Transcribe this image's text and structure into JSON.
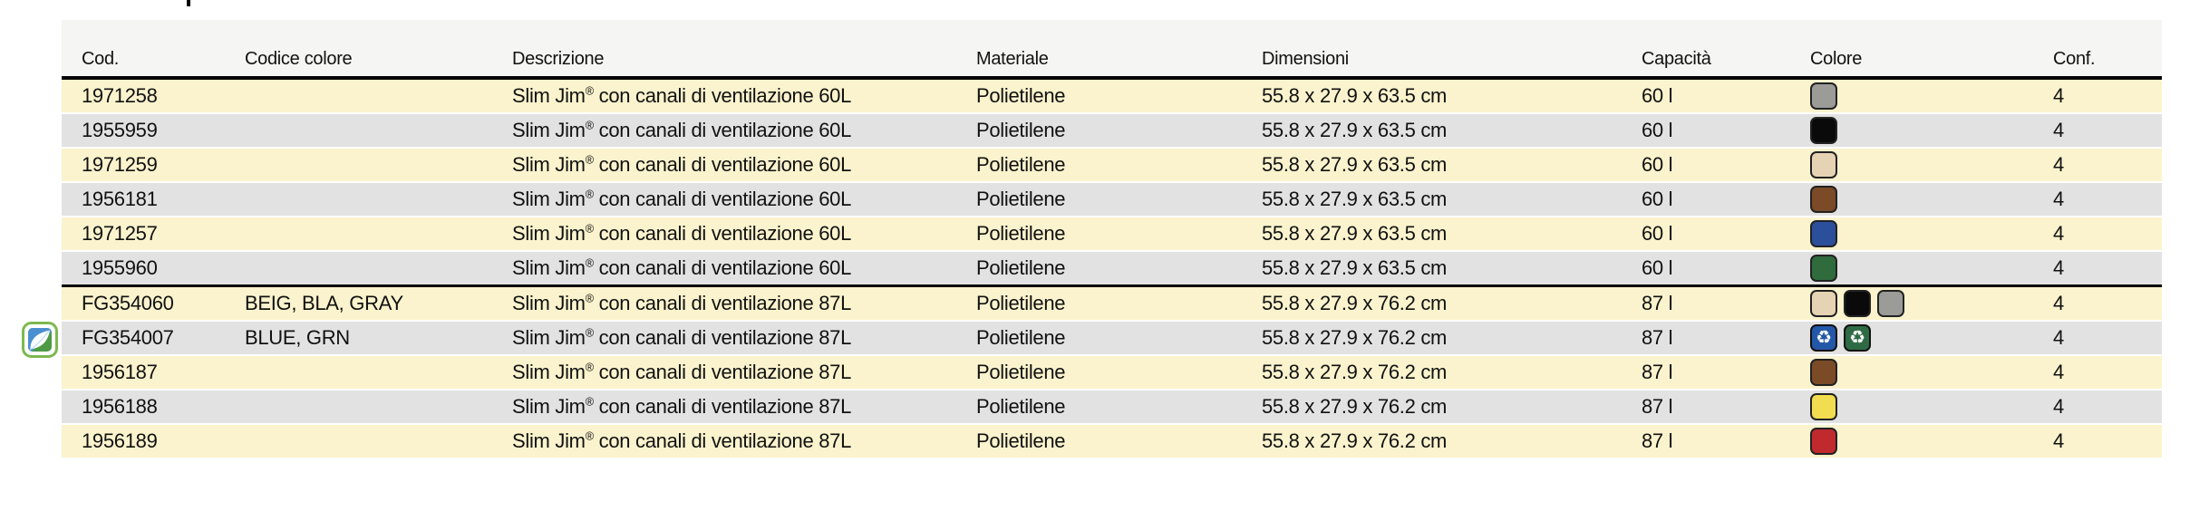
{
  "table": {
    "columns": [
      {
        "key": "cod",
        "label": "Cod."
      },
      {
        "key": "codice_colore",
        "label": "Codice colore"
      },
      {
        "key": "descrizione",
        "label": "Descrizione"
      },
      {
        "key": "materiale",
        "label": "Materiale"
      },
      {
        "key": "dimensioni",
        "label": "Dimensioni"
      },
      {
        "key": "capacita",
        "label": "Capacità"
      },
      {
        "key": "colore",
        "label": "Colore"
      },
      {
        "key": "conf",
        "label": "Conf."
      }
    ],
    "rows": [
      {
        "cod": "1971258",
        "codice_colore": "",
        "descrizione": "Slim Jim® con canali di ventilazione 60L",
        "materiale": "Polietilene",
        "dimensioni": "55.8 x 27.9 x 63.5 cm",
        "capacita": "60 l",
        "conf": "4",
        "eco": false,
        "group_end": false,
        "swatches": [
          {
            "name": "gray",
            "hex": "#9B9B98",
            "recycle": false
          }
        ]
      },
      {
        "cod": "1955959",
        "codice_colore": "",
        "descrizione": "Slim Jim® con canali di ventilazione 60L",
        "materiale": "Polietilene",
        "dimensioni": "55.8 x 27.9 x 63.5 cm",
        "capacita": "60 l",
        "conf": "4",
        "eco": false,
        "group_end": false,
        "swatches": [
          {
            "name": "black",
            "hex": "#0A0A0A",
            "recycle": false
          }
        ]
      },
      {
        "cod": "1971259",
        "codice_colore": "",
        "descrizione": "Slim Jim® con canali di ventilazione 60L",
        "materiale": "Polietilene",
        "dimensioni": "55.8 x 27.9 x 63.5 cm",
        "capacita": "60 l",
        "conf": "4",
        "eco": false,
        "group_end": false,
        "swatches": [
          {
            "name": "beige",
            "hex": "#E6D3B3",
            "recycle": false
          }
        ]
      },
      {
        "cod": "1956181",
        "codice_colore": "",
        "descrizione": "Slim Jim® con canali di ventilazione 60L",
        "materiale": "Polietilene",
        "dimensioni": "55.8 x 27.9 x 63.5 cm",
        "capacita": "60 l",
        "conf": "4",
        "eco": false,
        "group_end": false,
        "swatches": [
          {
            "name": "brown",
            "hex": "#7B4A27",
            "recycle": false
          }
        ]
      },
      {
        "cod": "1971257",
        "codice_colore": "",
        "descrizione": "Slim Jim® con canali di ventilazione 60L",
        "materiale": "Polietilene",
        "dimensioni": "55.8 x 27.9 x 63.5 cm",
        "capacita": "60 l",
        "conf": "4",
        "eco": false,
        "group_end": false,
        "swatches": [
          {
            "name": "blue",
            "hex": "#2C4F9C",
            "recycle": false
          }
        ]
      },
      {
        "cod": "1955960",
        "codice_colore": "",
        "descrizione": "Slim Jim® con canali di ventilazione 60L",
        "materiale": "Polietilene",
        "dimensioni": "55.8 x 27.9 x 63.5 cm",
        "capacita": "60 l",
        "conf": "4",
        "eco": false,
        "group_end": true,
        "swatches": [
          {
            "name": "green",
            "hex": "#2F6B3C",
            "recycle": false
          }
        ]
      },
      {
        "cod": "FG354060",
        "codice_colore": "BEIG, BLA, GRAY",
        "descrizione": "Slim Jim® con canali di ventilazione 87L",
        "materiale": "Polietilene",
        "dimensioni": "55.8 x 27.9 x 76.2 cm",
        "capacita": "87 l",
        "conf": "4",
        "eco": false,
        "group_end": false,
        "swatches": [
          {
            "name": "beige",
            "hex": "#E6D3B3",
            "recycle": false
          },
          {
            "name": "black",
            "hex": "#0A0A0A",
            "recycle": false
          },
          {
            "name": "gray",
            "hex": "#9B9B98",
            "recycle": false
          }
        ]
      },
      {
        "cod": "FG354007",
        "codice_colore": "BLUE, GRN",
        "descrizione": "Slim Jim® con canali di ventilazione 87L",
        "materiale": "Polietilene",
        "dimensioni": "55.8 x 27.9 x 76.2 cm",
        "capacita": "87 l",
        "conf": "4",
        "eco": true,
        "group_end": false,
        "swatches": [
          {
            "name": "recycled blue",
            "hex": "#2357A7",
            "recycle": true
          },
          {
            "name": "recycled green",
            "hex": "#2E6B44",
            "recycle": true
          }
        ]
      },
      {
        "cod": "1956187",
        "codice_colore": "",
        "descrizione": "Slim Jim® con canali di ventilazione 87L",
        "materiale": "Polietilene",
        "dimensioni": "55.8 x 27.9 x 76.2 cm",
        "capacita": "87 l",
        "conf": "4",
        "eco": false,
        "group_end": false,
        "swatches": [
          {
            "name": "brown",
            "hex": "#7B4A27",
            "recycle": false
          }
        ]
      },
      {
        "cod": "1956188",
        "codice_colore": "",
        "descrizione": "Slim Jim® con canali di ventilazione 87L",
        "materiale": "Polietilene",
        "dimensioni": "55.8 x 27.9 x 76.2 cm",
        "capacita": "87 l",
        "conf": "4",
        "eco": false,
        "group_end": false,
        "swatches": [
          {
            "name": "yellow",
            "hex": "#F2DC4F",
            "recycle": false
          }
        ]
      },
      {
        "cod": "1956189",
        "codice_colore": "",
        "descrizione": "Slim Jim® con canali di ventilazione 87L",
        "materiale": "Polietilene",
        "dimensioni": "55.8 x 27.9 x 76.2 cm",
        "capacita": "87 l",
        "conf": "4",
        "eco": false,
        "group_end": false,
        "swatches": [
          {
            "name": "red",
            "hex": "#C02A2F",
            "recycle": false
          }
        ]
      }
    ]
  },
  "icons": {
    "recycle_symbol": "♻",
    "eco_icon_name": "eco-leaf-icon"
  },
  "colors": {
    "row_yellow": "#FAF3CD",
    "row_gray": "#E2E2E2",
    "header_band": "#F5F5F4",
    "rule_black": "#000000",
    "eco_border_green": "#7CB94E",
    "eco_leaf_blue": "#4A8FD0",
    "eco_leaf_green": "#4D9A45"
  }
}
